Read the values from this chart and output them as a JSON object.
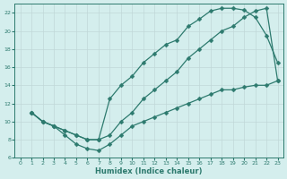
{
  "xlabel": "Humidex (Indice chaleur)",
  "bg_color": "#d4eeed",
  "grid_color": "#c0d8d8",
  "line_color": "#2d7a6e",
  "xlim": [
    -0.5,
    23.5
  ],
  "ylim": [
    6,
    23
  ],
  "yticks": [
    6,
    8,
    10,
    12,
    14,
    16,
    18,
    20,
    22
  ],
  "xticks": [
    0,
    1,
    2,
    3,
    4,
    5,
    6,
    7,
    8,
    9,
    10,
    11,
    12,
    13,
    14,
    15,
    16,
    17,
    18,
    19,
    20,
    21,
    22,
    23
  ],
  "line_upper_x": [
    1,
    2,
    3,
    4,
    5,
    6,
    7,
    8,
    9,
    10,
    11,
    12,
    13,
    14,
    15,
    16,
    17,
    18,
    19,
    20,
    21,
    22,
    23
  ],
  "line_upper_y": [
    11,
    10,
    9.5,
    9,
    8.5,
    8,
    8,
    12.5,
    14,
    15,
    16.5,
    17.5,
    18.5,
    19,
    20.5,
    21.3,
    22.2,
    22.5,
    22.5,
    22.3,
    21.5,
    19.5,
    16.5
  ],
  "line_mid_x": [
    1,
    2,
    3,
    4,
    5,
    6,
    7,
    8,
    9,
    10,
    11,
    12,
    13,
    14,
    15,
    16,
    17,
    18,
    19,
    20,
    21,
    22,
    23
  ],
  "line_mid_y": [
    11,
    10,
    9.5,
    9,
    8.5,
    8,
    8,
    8.5,
    10,
    11,
    12.5,
    13.5,
    14.5,
    15.5,
    17,
    18,
    19,
    20,
    20.5,
    21.5,
    22.2,
    22.5,
    14.5
  ],
  "line_lower_x": [
    1,
    2,
    3,
    4,
    5,
    6,
    7,
    8,
    9,
    10,
    11,
    12,
    13,
    14,
    15,
    16,
    17,
    18,
    19,
    20,
    21,
    22,
    23
  ],
  "line_lower_y": [
    11,
    10,
    9.5,
    8.5,
    7.5,
    7,
    6.8,
    7.5,
    8.5,
    9.5,
    10,
    10.5,
    11,
    11.5,
    12,
    12.5,
    13,
    13.5,
    13.5,
    13.8,
    14,
    14,
    14.5
  ]
}
